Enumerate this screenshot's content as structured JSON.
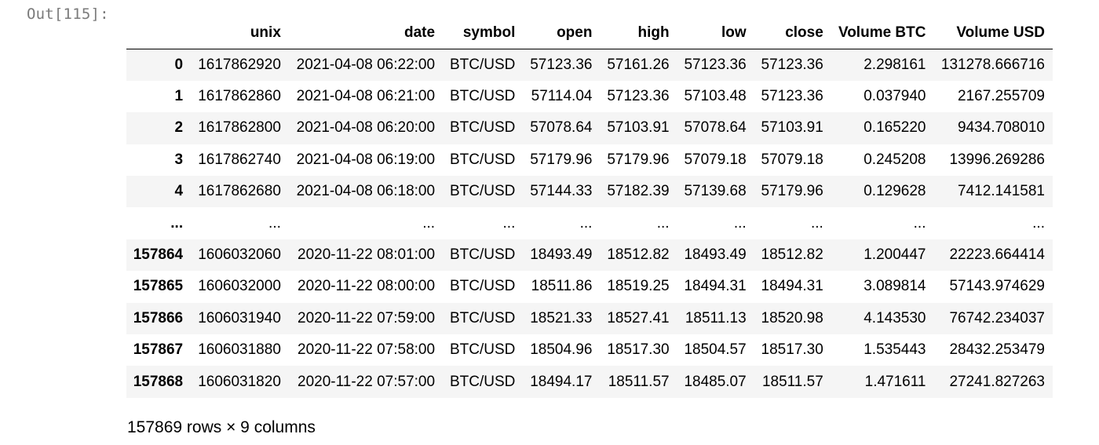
{
  "cell": {
    "prompt": "Out[115]:"
  },
  "dataframe": {
    "columns": [
      "",
      "unix",
      "date",
      "symbol",
      "open",
      "high",
      "low",
      "close",
      "Volume BTC",
      "Volume USD"
    ],
    "rows": [
      [
        "0",
        "1617862920",
        "2021-04-08 06:22:00",
        "BTC/USD",
        "57123.36",
        "57161.26",
        "57123.36",
        "57123.36",
        "2.298161",
        "131278.666716"
      ],
      [
        "1",
        "1617862860",
        "2021-04-08 06:21:00",
        "BTC/USD",
        "57114.04",
        "57123.36",
        "57103.48",
        "57123.36",
        "0.037940",
        "2167.255709"
      ],
      [
        "2",
        "1617862800",
        "2021-04-08 06:20:00",
        "BTC/USD",
        "57078.64",
        "57103.91",
        "57078.64",
        "57103.91",
        "0.165220",
        "9434.708010"
      ],
      [
        "3",
        "1617862740",
        "2021-04-08 06:19:00",
        "BTC/USD",
        "57179.96",
        "57179.96",
        "57079.18",
        "57079.18",
        "0.245208",
        "13996.269286"
      ],
      [
        "4",
        "1617862680",
        "2021-04-08 06:18:00",
        "BTC/USD",
        "57144.33",
        "57182.39",
        "57139.68",
        "57179.96",
        "0.129628",
        "7412.141581"
      ],
      [
        "...",
        "...",
        "...",
        "...",
        "...",
        "...",
        "...",
        "...",
        "...",
        "..."
      ],
      [
        "157864",
        "1606032060",
        "2020-11-22 08:01:00",
        "BTC/USD",
        "18493.49",
        "18512.82",
        "18493.49",
        "18512.82",
        "1.200447",
        "22223.664414"
      ],
      [
        "157865",
        "1606032000",
        "2020-11-22 08:00:00",
        "BTC/USD",
        "18511.86",
        "18519.25",
        "18494.31",
        "18494.31",
        "3.089814",
        "57143.974629"
      ],
      [
        "157866",
        "1606031940",
        "2020-11-22 07:59:00",
        "BTC/USD",
        "18521.33",
        "18527.41",
        "18511.13",
        "18520.98",
        "4.143530",
        "76742.234037"
      ],
      [
        "157867",
        "1606031880",
        "2020-11-22 07:58:00",
        "BTC/USD",
        "18504.96",
        "18517.30",
        "18504.57",
        "18517.30",
        "1.535443",
        "28432.253479"
      ],
      [
        "157868",
        "1606031820",
        "2020-11-22 07:57:00",
        "BTC/USD",
        "18494.17",
        "18511.57",
        "18485.07",
        "18511.57",
        "1.471611",
        "27241.827263"
      ]
    ],
    "shape_text": "157869 rows × 9 columns"
  }
}
